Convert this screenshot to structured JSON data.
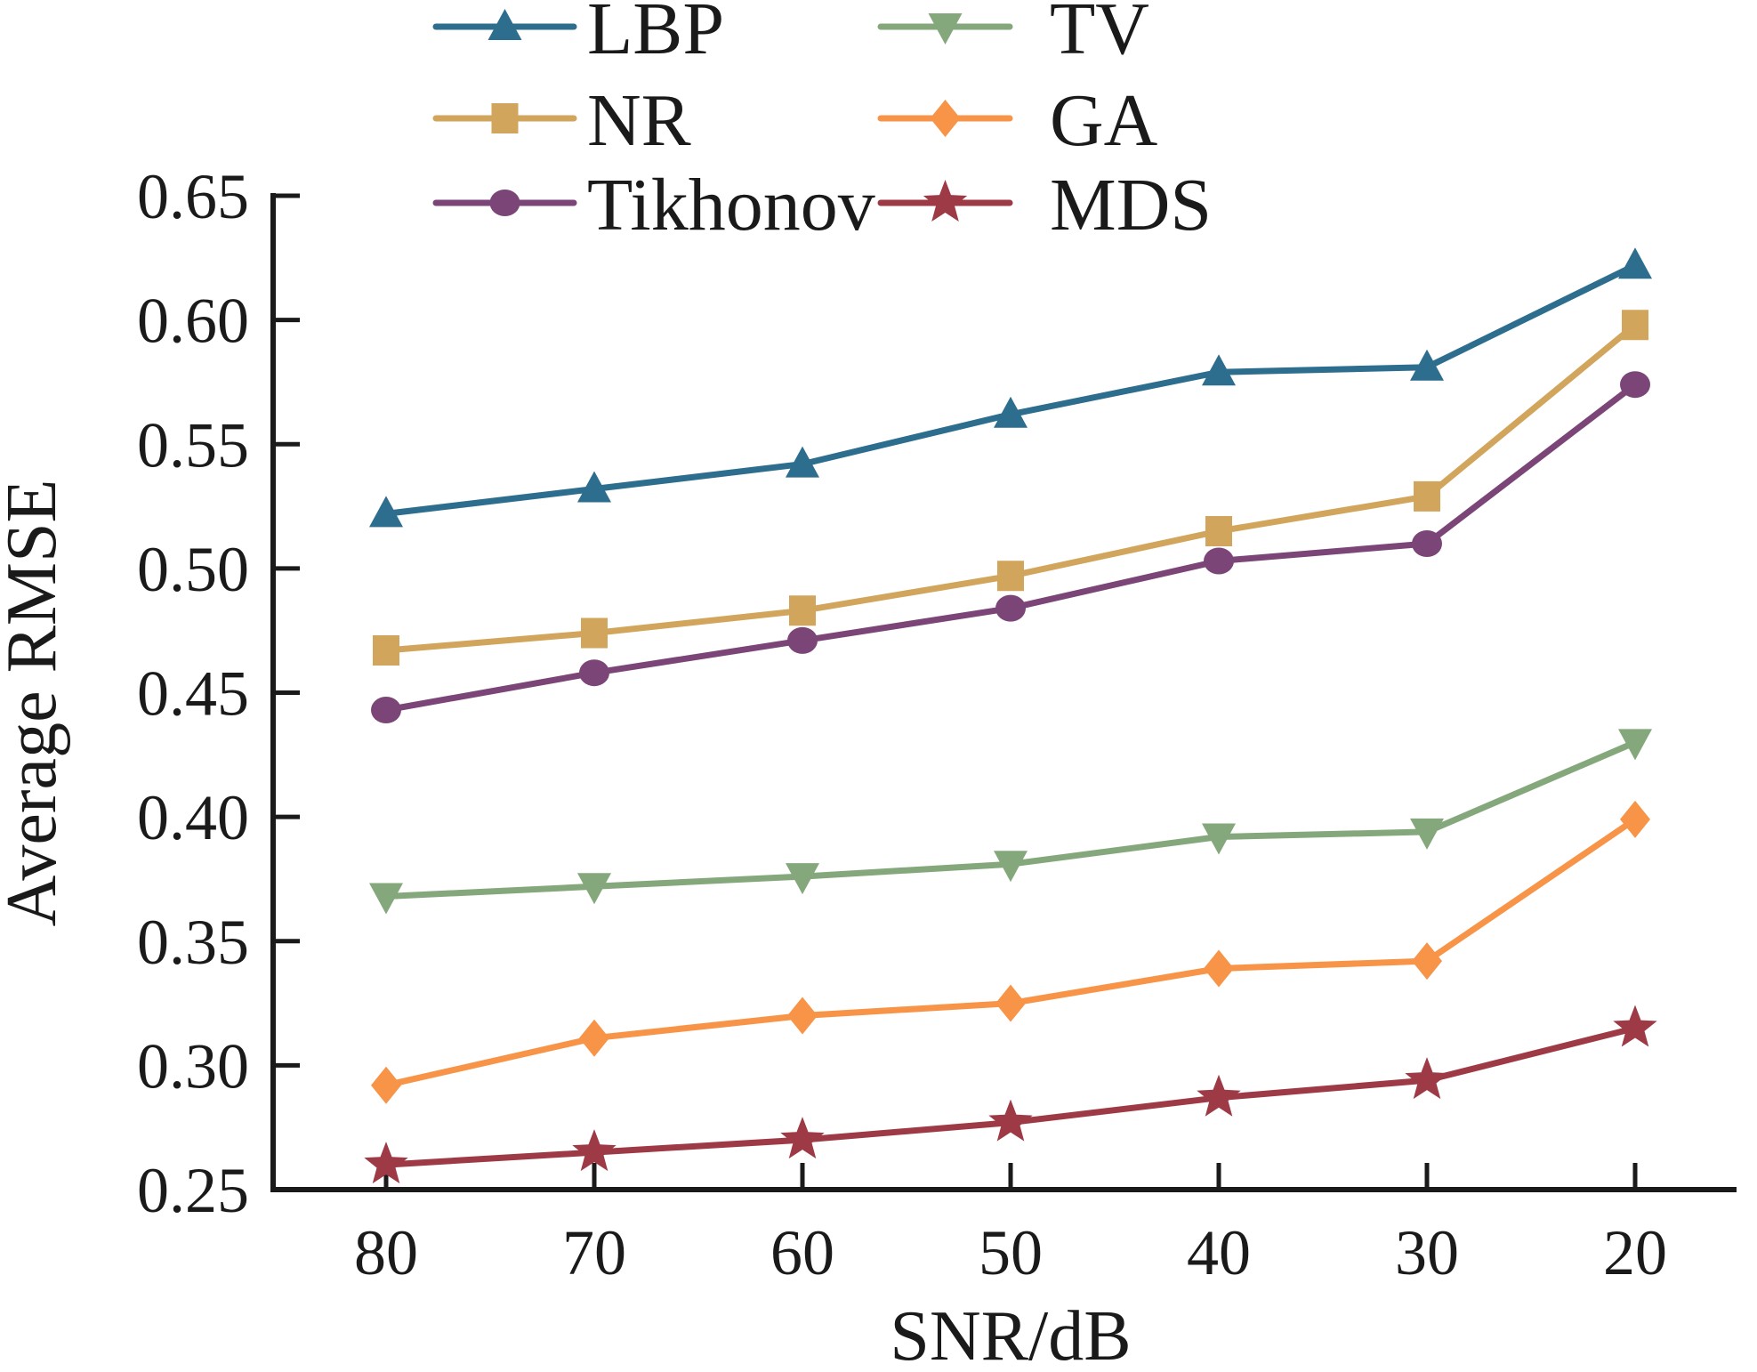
{
  "figure": {
    "background": "#ffffff",
    "text_color": "#1a1a1a",
    "axis_color": "#1a1a1a"
  },
  "chart_data": {
    "type": "line",
    "title": "",
    "xlabel": "SNR/dB",
    "ylabel": "Average RMSE",
    "categories": [
      80,
      70,
      60,
      50,
      40,
      30,
      20
    ],
    "x_tick_labels": [
      "80",
      "70",
      "60",
      "50",
      "40",
      "30",
      "20"
    ],
    "y_tick_labels": [
      "0.65",
      "0.60",
      "0.55",
      "0.50",
      "0.45",
      "0.40",
      "0.35",
      "0.30",
      "0.25"
    ],
    "ylim": [
      0.25,
      0.65
    ],
    "y_tick_step": 0.05,
    "grid": false,
    "legend_position": "top",
    "legend_columns": 2,
    "series": [
      {
        "name": "LBP",
        "color": "#2d6d8e",
        "marker": "triangle-up",
        "values": [
          0.522,
          0.532,
          0.542,
          0.562,
          0.579,
          0.581,
          0.622
        ]
      },
      {
        "name": "NR",
        "color": "#d2a55c",
        "marker": "square",
        "values": [
          0.467,
          0.474,
          0.483,
          0.497,
          0.515,
          0.529,
          0.598
        ]
      },
      {
        "name": "Tikhonov",
        "color": "#7b4578",
        "marker": "circle",
        "values": [
          0.443,
          0.458,
          0.471,
          0.484,
          0.503,
          0.51,
          0.574
        ]
      },
      {
        "name": "TV",
        "color": "#84a87b",
        "marker": "triangle-down",
        "values": [
          0.368,
          0.372,
          0.376,
          0.381,
          0.392,
          0.394,
          0.43
        ]
      },
      {
        "name": "GA",
        "color": "#f79447",
        "marker": "diamond",
        "values": [
          0.292,
          0.311,
          0.32,
          0.325,
          0.339,
          0.342,
          0.399
        ]
      },
      {
        "name": "MDS",
        "color": "#9e3a46",
        "marker": "star",
        "values": [
          0.26,
          0.265,
          0.27,
          0.277,
          0.287,
          0.294,
          0.315
        ]
      }
    ]
  }
}
